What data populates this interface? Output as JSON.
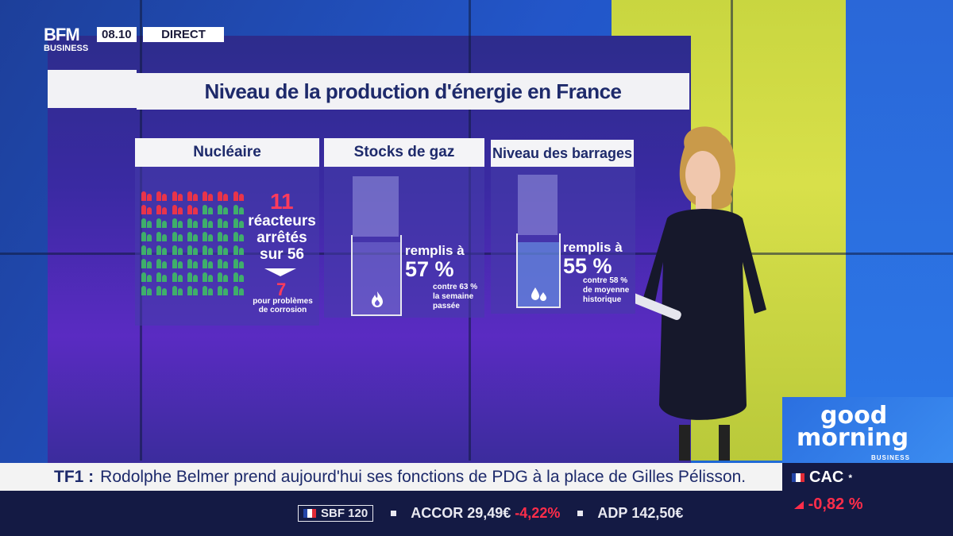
{
  "channel": {
    "logo_main": "BFM",
    "logo_sub": "BUSINESS",
    "time": "08.10",
    "status": "DIRECT"
  },
  "infographic": {
    "title": "Niveau de la production d'énergie en France",
    "nuclear": {
      "header": "Nucléaire",
      "count": "11",
      "line1": "réacteurs",
      "line2": "arrêtés",
      "line3": "sur 56",
      "sub_count": "7",
      "sub_line1": "pour problèmes",
      "sub_line2": "de corrosion",
      "stopped_fraction": "11/56"
    },
    "gas": {
      "header": "Stocks de gaz",
      "label": "remplis à",
      "value": "57 %",
      "fill_fraction": 0.57,
      "compare1": "contre 63 %",
      "compare2": "la semaine",
      "compare3": "passée",
      "icon": "flame-icon"
    },
    "dams": {
      "header": "Niveau des barrages",
      "label": "remplis à",
      "value": "55 %",
      "fill_fraction": 0.55,
      "compare1": "contre 58 %",
      "compare2": "de moyenne",
      "compare3": "historique",
      "icon": "water-drops-icon"
    }
  },
  "ticker": {
    "source": "TF1 :",
    "message": "Rodolphe Belmer prend aujourd'hui ses fonctions de PDG à la place de Gilles Pélisson.",
    "markets": [
      {
        "name": "SBF 120"
      },
      {
        "name": "ACCOR",
        "price": "29,49€",
        "change": "-4,22%"
      },
      {
        "name": "ADP",
        "price": "142,50€"
      }
    ]
  },
  "show": {
    "line1": "good",
    "line2": "morning",
    "sub": "BUSINESS"
  },
  "index": {
    "name": "CAC",
    "marker": "*",
    "change": "-0,82 %"
  },
  "colors": {
    "accent_red": "#ff3b5c",
    "title_navy": "#1e2a6b",
    "ticker_navy": "#141a44"
  }
}
